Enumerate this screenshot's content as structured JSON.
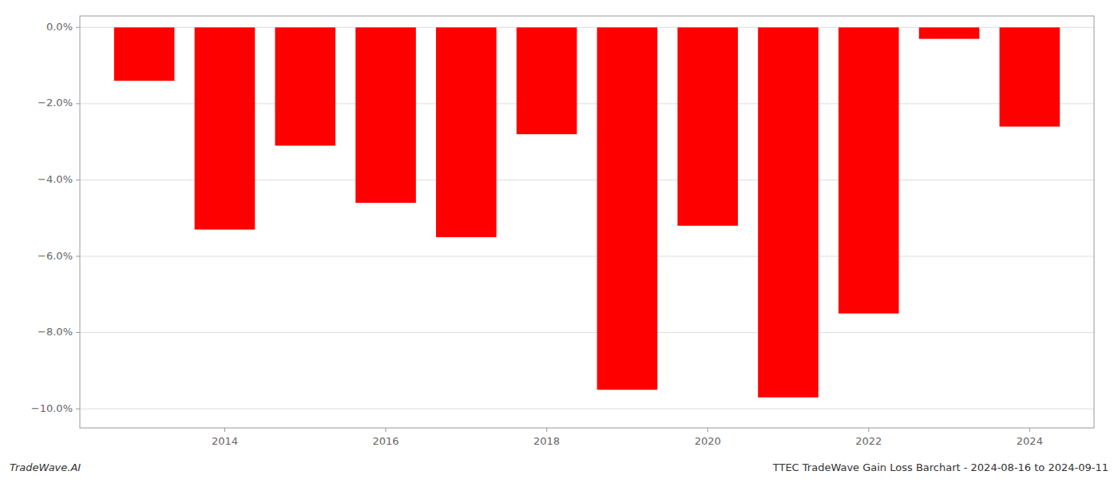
{
  "chart_data": {
    "type": "bar",
    "x": [
      2013,
      2014,
      2015,
      2016,
      2017,
      2018,
      2019,
      2020,
      2021,
      2022,
      2023,
      2024
    ],
    "values": [
      -1.4,
      -5.3,
      -3.1,
      -4.6,
      -5.5,
      -2.8,
      -9.5,
      -5.2,
      -9.7,
      -7.5,
      -0.3,
      -2.6
    ],
    "color": "#ff0000",
    "xlim": [
      2012.2,
      2024.8
    ],
    "xticks": [
      2014,
      2016,
      2018,
      2020,
      2022,
      2024
    ],
    "ylim": [
      -10.5,
      0.3
    ],
    "yticks": [
      {
        "value": 0.0,
        "label": "0.0%"
      },
      {
        "value": -2.0,
        "label": "−2.0%"
      },
      {
        "value": -4.0,
        "label": "−4.0%"
      },
      {
        "value": -6.0,
        "label": "−6.0%"
      },
      {
        "value": -8.0,
        "label": "−8.0%"
      },
      {
        "value": -10.0,
        "label": "−10.0%"
      }
    ],
    "grid": true,
    "annotations": [
      "TradeWave.AI",
      "TTEC TradeWave Gain Loss Barchart - 2024-08-16 to 2024-09-11"
    ]
  }
}
